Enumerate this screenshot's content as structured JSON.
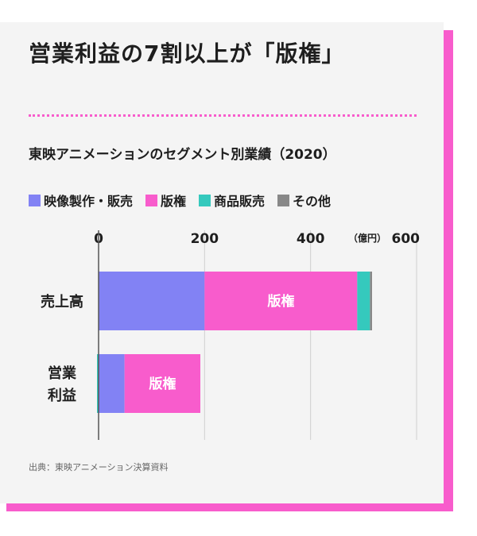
{
  "title": "営業利益の7割以上が「版権」",
  "subtitle": "東映アニメーションのセグメント別業績（2020）",
  "source": "出典：東映アニメーション決算資料",
  "colors": {
    "accent": "#f85ccc",
    "card_bg": "#f4f4f4",
    "video": "#8282f4",
    "license": "#f85ccc",
    "merch": "#35c9bd",
    "other": "#888888"
  },
  "legend": [
    {
      "label": "映像製作・販売",
      "color": "#8282f4"
    },
    {
      "label": "版権",
      "color": "#f85ccc"
    },
    {
      "label": "商品販売",
      "color": "#35c9bd"
    },
    {
      "label": "その他",
      "color": "#888888"
    }
  ],
  "chart_data": {
    "type": "bar",
    "orientation": "horizontal",
    "stacked": true,
    "unit": "（億円）",
    "xlim": [
      0,
      600
    ],
    "xticks": [
      0,
      200,
      400,
      600
    ],
    "categories": [
      {
        "lines": [
          "売上高"
        ]
      },
      {
        "lines": [
          "営業",
          "利益"
        ]
      }
    ],
    "series": [
      {
        "name": "映像製作・販売",
        "color": "#8282f4",
        "values": [
          200,
          52
        ]
      },
      {
        "name": "版権",
        "color": "#f85ccc",
        "values": [
          288,
          143
        ],
        "bar_label": "版権"
      },
      {
        "name": "商品販売",
        "color": "#35c9bd",
        "values": [
          24,
          0
        ]
      },
      {
        "name": "その他",
        "color": "#888888",
        "values": [
          4,
          0
        ]
      }
    ],
    "starts": [
      0,
      -3
    ]
  }
}
